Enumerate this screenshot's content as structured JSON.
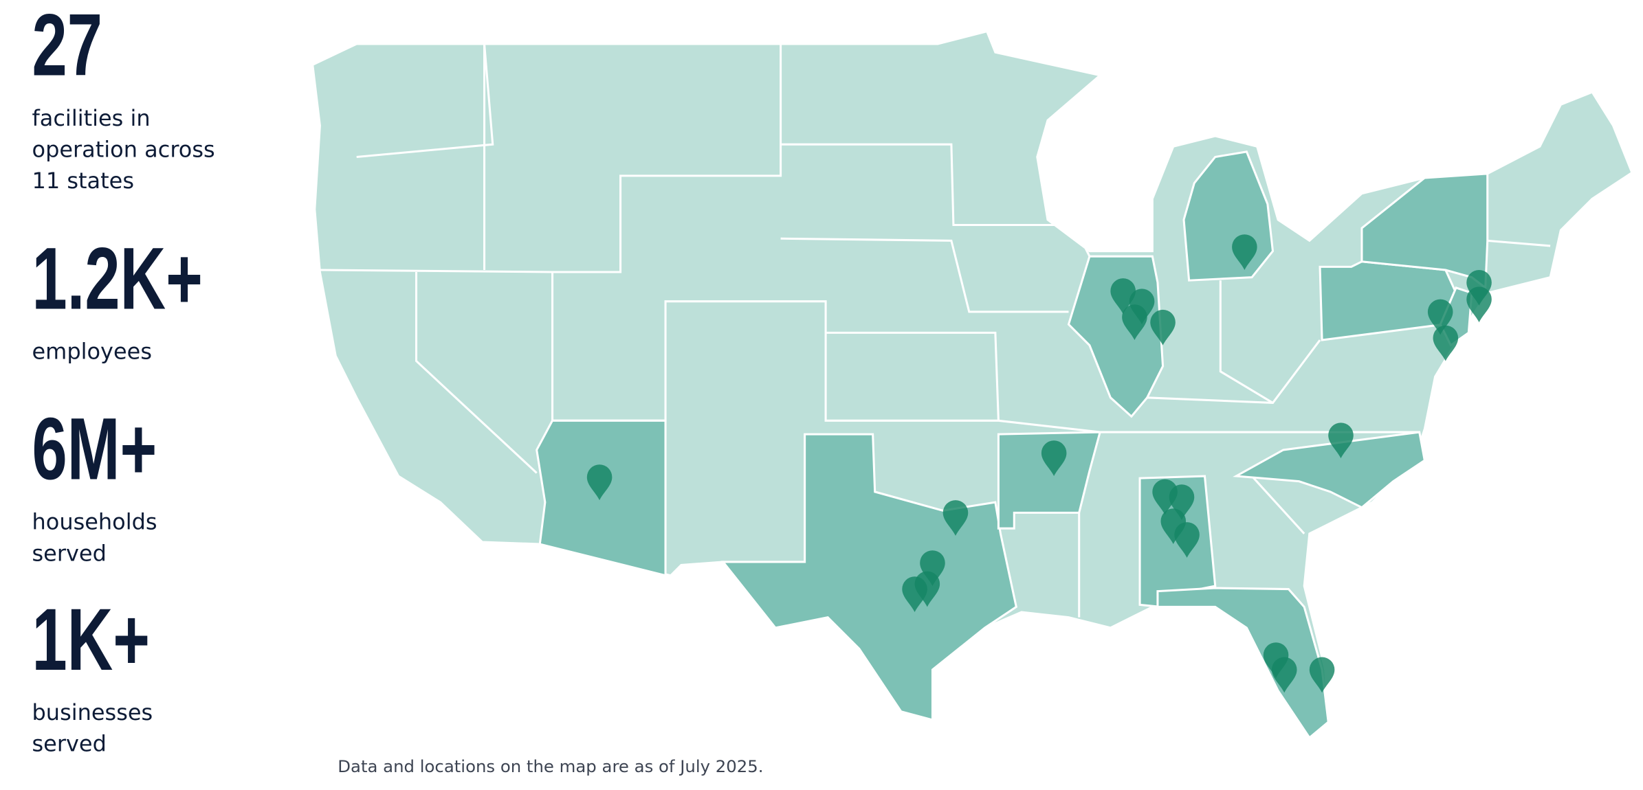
{
  "stats": [
    {
      "value": "27",
      "label_lines": [
        "facilities in",
        "operation across",
        "11 states"
      ]
    },
    {
      "value": "1.2K+",
      "label_lines": [
        "employees"
      ]
    },
    {
      "value": "6M+",
      "label_lines": [
        "households",
        "served"
      ]
    },
    {
      "value": "1K+",
      "label_lines": [
        "businesses",
        "served"
      ]
    }
  ],
  "footnote": "Data and locations on the map are as of July 2025."
}
